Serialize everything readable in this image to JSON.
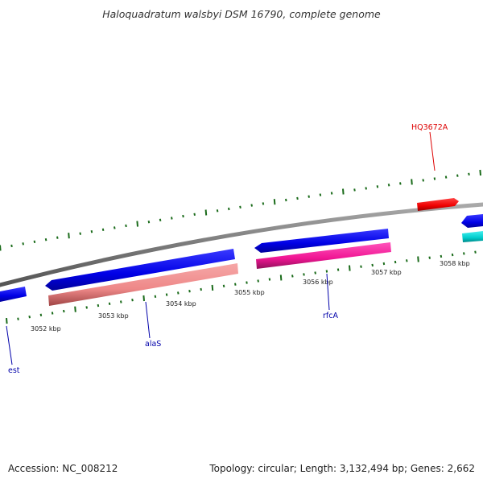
{
  "title": "Haloquadratum walsbyi DSM 16790, complete genome",
  "footer": {
    "accession": "Accession: NC_008212",
    "topology": "Topology: circular; Length: 3,132,494 bp; Genes: 2,662"
  },
  "scale_labels": [
    "3052 kbp",
    "3053 kbp",
    "3054 kbp",
    "3055 kbp",
    "3056 kbp",
    "3057 kbp",
    "3058 kbp"
  ],
  "gene_labels": [
    {
      "name": "est",
      "color": "#0000aa"
    },
    {
      "name": "alaS",
      "color": "#0000aa"
    },
    {
      "name": "rfcA",
      "color": "#0000aa"
    },
    {
      "name": "HQ3672A",
      "color": "#dd0000"
    }
  ],
  "colors": {
    "backbone": "#808080",
    "tick": "#1a6b1a",
    "cds": "#0000ee",
    "rrna": "#f08080",
    "trna": "#ff1493",
    "ncrna": "#ff0000",
    "misc": "#00cccc"
  }
}
